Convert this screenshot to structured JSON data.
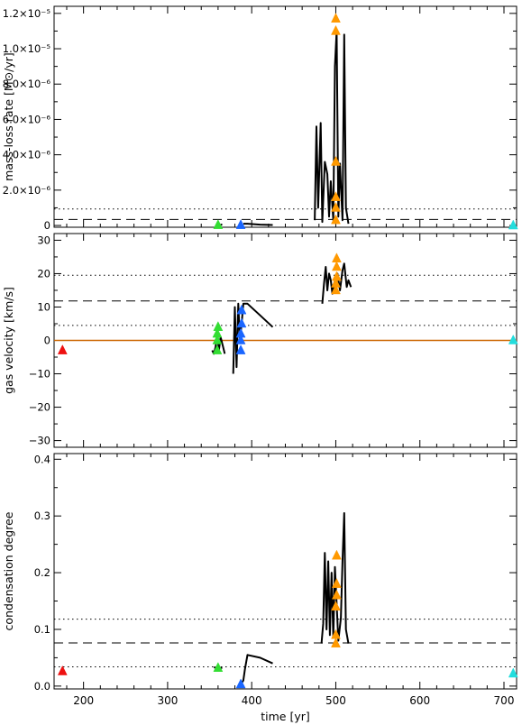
{
  "chart_data": [
    {
      "type": "scatter",
      "panel": "mass-loss",
      "ylabel": "mass-loss rate [M⊙/yr]",
      "xlim": [
        165,
        715
      ],
      "ylim": [
        -1e-07,
        1.24e-05
      ],
      "yticks": [
        0,
        2e-06,
        4e-06,
        6e-06,
        8e-06,
        1e-05,
        1.2e-05
      ],
      "ytick_labels": [
        "0",
        "2.0×10⁻⁶",
        "4.0×10⁻⁶",
        "6.0×10⁻⁶",
        "8.0×10⁻⁶",
        "1.0×10⁻⁵",
        "1.2×10⁻⁵"
      ],
      "hlines": [
        {
          "y": 3.4e-07,
          "style": "dashed"
        },
        {
          "y": 9.3e-07,
          "style": "dotted"
        }
      ],
      "series": [
        {
          "color": "#000000",
          "points": [
            [
              363,
              5e-08
            ],
            [
              365,
              5e-08
            ]
          ]
        },
        {
          "color": "#000000",
          "points": [
            [
              390,
              1e-07
            ],
            [
              395,
              1e-07
            ],
            [
              410,
              5e-08
            ],
            [
              425,
              3e-08
            ]
          ]
        },
        {
          "color": "#000000",
          "points": [
            [
              475,
              3e-07
            ],
            [
              477,
              5.6e-06
            ],
            [
              479,
              1e-06
            ],
            [
              482,
              5.8e-06
            ],
            [
              484,
              2e-07
            ],
            [
              487,
              3.6e-06
            ],
            [
              490,
              2.9e-06
            ],
            [
              492,
              5e-07
            ],
            [
              494,
              2.5e-06
            ],
            [
              497,
              3e-07
            ],
            [
              499,
              9e-06
            ],
            [
              501,
              1.1e-05
            ],
            [
              503,
              5e-07
            ],
            [
              505,
              3.5e-06
            ],
            [
              508,
              3e-07
            ],
            [
              510,
              1.08e-05
            ],
            [
              512,
              1e-06
            ],
            [
              515,
              1e-07
            ]
          ]
        }
      ],
      "markers": [
        {
          "x": 360,
          "y": 2e-08,
          "color": "#33dd33"
        },
        {
          "x": 387,
          "y": 2e-08,
          "color": "#1a66ff"
        },
        {
          "x": 500,
          "y": 3e-07,
          "color": "#ff9900"
        },
        {
          "x": 500,
          "y": 1e-06,
          "color": "#ff9900"
        },
        {
          "x": 500,
          "y": 1.6e-06,
          "color": "#ff9900"
        },
        {
          "x": 500,
          "y": 3.6e-06,
          "color": "#ff9900"
        },
        {
          "x": 500,
          "y": 1.1e-05,
          "color": "#ff9900"
        },
        {
          "x": 500,
          "y": 1.17e-05,
          "color": "#ff9900"
        },
        {
          "x": 711,
          "y": 0.0,
          "color": "#22dddd"
        }
      ]
    },
    {
      "type": "scatter",
      "panel": "velocity",
      "ylabel": "gas velocity [km/s]",
      "xlim": [
        165,
        715
      ],
      "ylim": [
        -32,
        32
      ],
      "yticks": [
        -30,
        -20,
        -10,
        0,
        10,
        20,
        30
      ],
      "ytick_labels": [
        "−30",
        "−20",
        "−10",
        "0",
        "10",
        "20",
        "30"
      ],
      "hlines": [
        {
          "y": 19.5,
          "style": "dotted"
        },
        {
          "y": 11.8,
          "style": "dashed"
        },
        {
          "y": 4.5,
          "style": "dotted"
        },
        {
          "y": 0,
          "style": "solid",
          "color": "#cc6600"
        }
      ],
      "series": [
        {
          "color": "#000000",
          "points": [
            [
              353,
              -3
            ],
            [
              355,
              -4
            ],
            [
              357,
              -2
            ],
            [
              359,
              2
            ],
            [
              361,
              -3
            ],
            [
              363,
              1
            ],
            [
              366,
              -2
            ],
            [
              368,
              -4
            ]
          ]
        },
        {
          "color": "#000000",
          "points": [
            [
              378,
              -10
            ],
            [
              380,
              10
            ],
            [
              382,
              -8
            ],
            [
              384,
              11
            ],
            [
              386,
              0
            ],
            [
              388,
              5
            ],
            [
              390,
              11
            ],
            [
              395,
              11
            ],
            [
              410,
              7.5
            ],
            [
              425,
              4
            ]
          ]
        },
        {
          "color": "#000000",
          "points": [
            [
              484,
              11
            ],
            [
              486,
              17
            ],
            [
              488,
              22
            ],
            [
              490,
              15
            ],
            [
              492,
              20
            ],
            [
              494,
              18
            ],
            [
              496,
              14
            ],
            [
              498,
              17
            ],
            [
              502,
              20
            ],
            [
              505,
              15
            ],
            [
              508,
              21
            ],
            [
              510,
              23
            ],
            [
              513,
              16
            ],
            [
              515,
              18
            ],
            [
              518,
              16
            ]
          ]
        }
      ],
      "markers": [
        {
          "x": 175,
          "y": -3,
          "color": "#ee1111"
        },
        {
          "x": 359,
          "y": -3,
          "color": "#33dd33"
        },
        {
          "x": 359,
          "y": 0,
          "color": "#33dd33"
        },
        {
          "x": 359,
          "y": 2,
          "color": "#33dd33"
        },
        {
          "x": 360,
          "y": 4,
          "color": "#33dd33"
        },
        {
          "x": 387,
          "y": -3,
          "color": "#1a66ff"
        },
        {
          "x": 387,
          "y": 0,
          "color": "#1a66ff"
        },
        {
          "x": 387,
          "y": 2,
          "color": "#1a66ff"
        },
        {
          "x": 388,
          "y": 5,
          "color": "#1a66ff"
        },
        {
          "x": 388,
          "y": 9,
          "color": "#1a66ff"
        },
        {
          "x": 500,
          "y": 15,
          "color": "#ff9900"
        },
        {
          "x": 500,
          "y": 17,
          "color": "#ff9900"
        },
        {
          "x": 501,
          "y": 19,
          "color": "#ff9900"
        },
        {
          "x": 501,
          "y": 22,
          "color": "#ff9900"
        },
        {
          "x": 501,
          "y": 24.5,
          "color": "#ff9900"
        },
        {
          "x": 711,
          "y": 0,
          "color": "#22dddd"
        }
      ]
    },
    {
      "type": "scatter",
      "panel": "condensation",
      "ylabel": "condensation degree",
      "xlabel": "time [yr]",
      "xlim": [
        165,
        715
      ],
      "ylim": [
        -0.005,
        0.41
      ],
      "xticks": [
        200,
        300,
        400,
        500,
        600,
        700
      ],
      "xtick_labels": [
        "200",
        "300",
        "400",
        "500",
        "600",
        "700"
      ],
      "yticks": [
        0.0,
        0.1,
        0.2,
        0.3,
        0.4
      ],
      "ytick_labels": [
        "0.0",
        "0.1",
        "0.2",
        "0.3",
        "0.4"
      ],
      "hlines": [
        {
          "y": 0.118,
          "style": "dotted"
        },
        {
          "y": 0.076,
          "style": "dashed"
        },
        {
          "y": 0.034,
          "style": "dotted"
        }
      ],
      "series": [
        {
          "color": "#000000",
          "points": [
            [
              355,
              0.033
            ],
            [
              365,
              0.032
            ]
          ]
        },
        {
          "color": "#000000",
          "points": [
            [
              387,
              0.003
            ],
            [
              390,
              0.01
            ],
            [
              392,
              0.03
            ],
            [
              395,
              0.055
            ],
            [
              410,
              0.05
            ],
            [
              425,
              0.04
            ]
          ]
        },
        {
          "color": "#000000",
          "points": [
            [
              483,
              0.075
            ],
            [
              485,
              0.11
            ],
            [
              487,
              0.235
            ],
            [
              489,
              0.1
            ],
            [
              491,
              0.22
            ],
            [
              493,
              0.09
            ],
            [
              495,
              0.2
            ],
            [
              497,
              0.085
            ],
            [
              499,
              0.21
            ],
            [
              503,
              0.08
            ],
            [
              506,
              0.12
            ],
            [
              508,
              0.22
            ],
            [
              510,
              0.305
            ],
            [
              512,
              0.1
            ],
            [
              515,
              0.075
            ]
          ]
        }
      ],
      "markers": [
        {
          "x": 175,
          "y": 0.026,
          "color": "#ee1111"
        },
        {
          "x": 360,
          "y": 0.032,
          "color": "#33dd33"
        },
        {
          "x": 387,
          "y": 0.003,
          "color": "#1a66ff"
        },
        {
          "x": 500,
          "y": 0.075,
          "color": "#ff9900"
        },
        {
          "x": 500,
          "y": 0.09,
          "color": "#ff9900"
        },
        {
          "x": 500,
          "y": 0.14,
          "color": "#ff9900"
        },
        {
          "x": 501,
          "y": 0.16,
          "color": "#ff9900"
        },
        {
          "x": 501,
          "y": 0.18,
          "color": "#ff9900"
        },
        {
          "x": 501,
          "y": 0.23,
          "color": "#ff9900"
        },
        {
          "x": 711,
          "y": 0.022,
          "color": "#22dddd"
        }
      ]
    }
  ]
}
